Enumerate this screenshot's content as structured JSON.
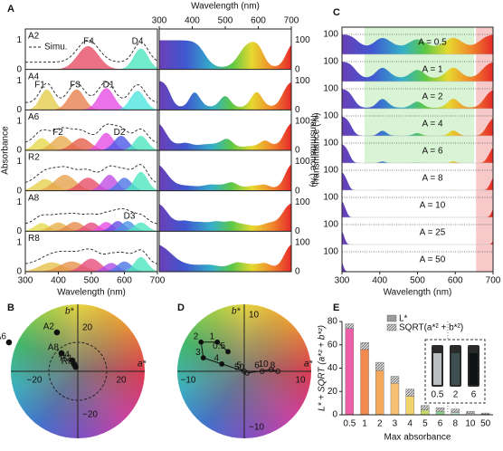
{
  "figure": {
    "panel_labels": [
      "A",
      "B",
      "C",
      "D",
      "E"
    ],
    "panel_a": {
      "top_x_label": "Wavelength (nm)",
      "x_label": "Wavelength (nm)",
      "y_label": "Absorbance",
      "y2_label": "Transmittance (%)",
      "xlim": [
        300,
        700
      ],
      "xticks": [
        300,
        400,
        500,
        600,
        700
      ],
      "yticks": [
        0,
        1
      ],
      "y2ticks": [
        0,
        100
      ],
      "legend": "Simu.",
      "rows": [
        {
          "name": "A2",
          "peaks": [
            "F4",
            "D4"
          ]
        },
        {
          "name": "A4",
          "peaks": [
            "F1",
            "F3",
            "D1"
          ]
        },
        {
          "name": "A6",
          "peaks": [
            "F2",
            "D2"
          ]
        },
        {
          "name": "R2"
        },
        {
          "name": "A8",
          "peaks": [
            "D3"
          ]
        },
        {
          "name": "R8"
        }
      ]
    },
    "panel_b": {
      "x_label": "a*",
      "y_label": "b*",
      "xticks": [
        {
          "value": -20,
          "label": "−20"
        },
        20
      ],
      "yticks": [
        {
          "value": -20,
          "label": "−20"
        },
        20
      ],
      "points": [
        {
          "label": "A2",
          "a": -9.6,
          "b": 17.9
        },
        {
          "label": "A6",
          "a": -31.7,
          "b": 13.3
        },
        {
          "label": "A8",
          "a": -7.5,
          "b": 8.3
        },
        {
          "label": "A4",
          "a": -2.5,
          "b": 5
        },
        {
          "label": "R2",
          "a": -1.7,
          "b": 3.3
        },
        {
          "label": "R8",
          "a": -1,
          "b": 2
        }
      ]
    },
    "panel_c": {
      "x_label": "Wavelength (nm)",
      "y_label": "Transmittance (%)",
      "xlim": [
        300,
        700
      ],
      "xticks": [
        300,
        400,
        500,
        600,
        700
      ],
      "yticks": [
        100
      ],
      "rows": [
        "A = 0.5",
        "A = 1",
        "A = 2",
        "A = 4",
        "A = 6",
        "A = 8",
        "A = 10",
        "A = 25",
        "A = 50"
      ]
    },
    "panel_d": {
      "x_label": "a*",
      "y_label": "b*",
      "xticks": [
        {
          "value": -10,
          "label": "−10"
        },
        10
      ],
      "yticks": [
        {
          "value": -10,
          "label": "−10"
        },
        10
      ],
      "points": [
        {
          "label": "0.5",
          "a": -2.9,
          "b": 3.5
        },
        {
          "label": "1",
          "a": -4.8,
          "b": 5.2
        },
        {
          "label": "2",
          "a": -7.7,
          "b": 5.2
        },
        {
          "label": "3",
          "a": -7.3,
          "b": 2.4
        },
        {
          "label": "4",
          "a": -4,
          "b": 1.3
        },
        {
          "label": "5",
          "a": 0,
          "b": 0
        },
        {
          "label": "6",
          "a": 3.2,
          "b": 0
        },
        {
          "label": "8",
          "a": 6,
          "b": 0
        },
        {
          "label": "10",
          "a": 4.8,
          "b": 0.3
        },
        {
          "label": "50",
          "a": 0.5,
          "b": -0.3
        }
      ]
    }
  },
  "chart_data": {
    "type": "bar",
    "stacked": true,
    "categories": [
      "0.5",
      "1",
      "2",
      "3",
      "4",
      "5",
      "6",
      "8",
      "10",
      "50"
    ],
    "x_label": "Max absorbance",
    "y_label": "L* + SQRT (a*² + b*²)",
    "ylim": [
      0,
      80
    ],
    "yticks": [
      0,
      20,
      40,
      60,
      80
    ],
    "legend": "upper right",
    "series": [
      {
        "name": "L*",
        "color": "#9a9a9a",
        "colors": [
          "#ec5fa6",
          "#f28a4e",
          "#f5a95a",
          "#f6c072",
          "#f3d36b",
          "#c8d86a",
          "#8fd08a",
          "#bfe3c8",
          "#d8e8e8",
          "#e6e6e6"
        ],
        "values": [
          74,
          56,
          38,
          27,
          16,
          4,
          3,
          2,
          1,
          0.5
        ]
      },
      {
        "name": "SQRT(a*² + b*²)",
        "color": "#8a8a8a",
        "values": [
          4,
          6,
          7,
          6,
          6,
          4,
          3,
          3,
          2,
          1
        ]
      }
    ],
    "inset_labels": [
      "0.5",
      "2",
      "6"
    ]
  }
}
